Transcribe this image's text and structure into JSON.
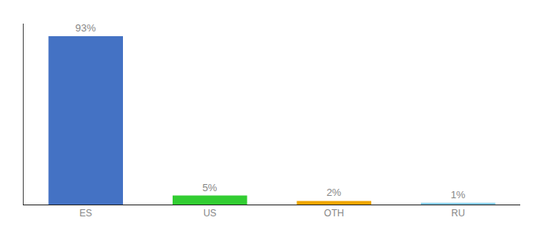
{
  "chart_data": {
    "type": "bar",
    "categories": [
      "ES",
      "US",
      "OTH",
      "RU"
    ],
    "values": [
      93,
      5,
      2,
      1
    ],
    "value_labels": [
      "93%",
      "5%",
      "2%",
      "1%"
    ],
    "colors": [
      "#4472c4",
      "#32cd32",
      "#f0a500",
      "#87ceeb"
    ],
    "ylim": [
      0,
      100
    ],
    "grid": false,
    "data_labels": true,
    "tick_labels": "x"
  }
}
